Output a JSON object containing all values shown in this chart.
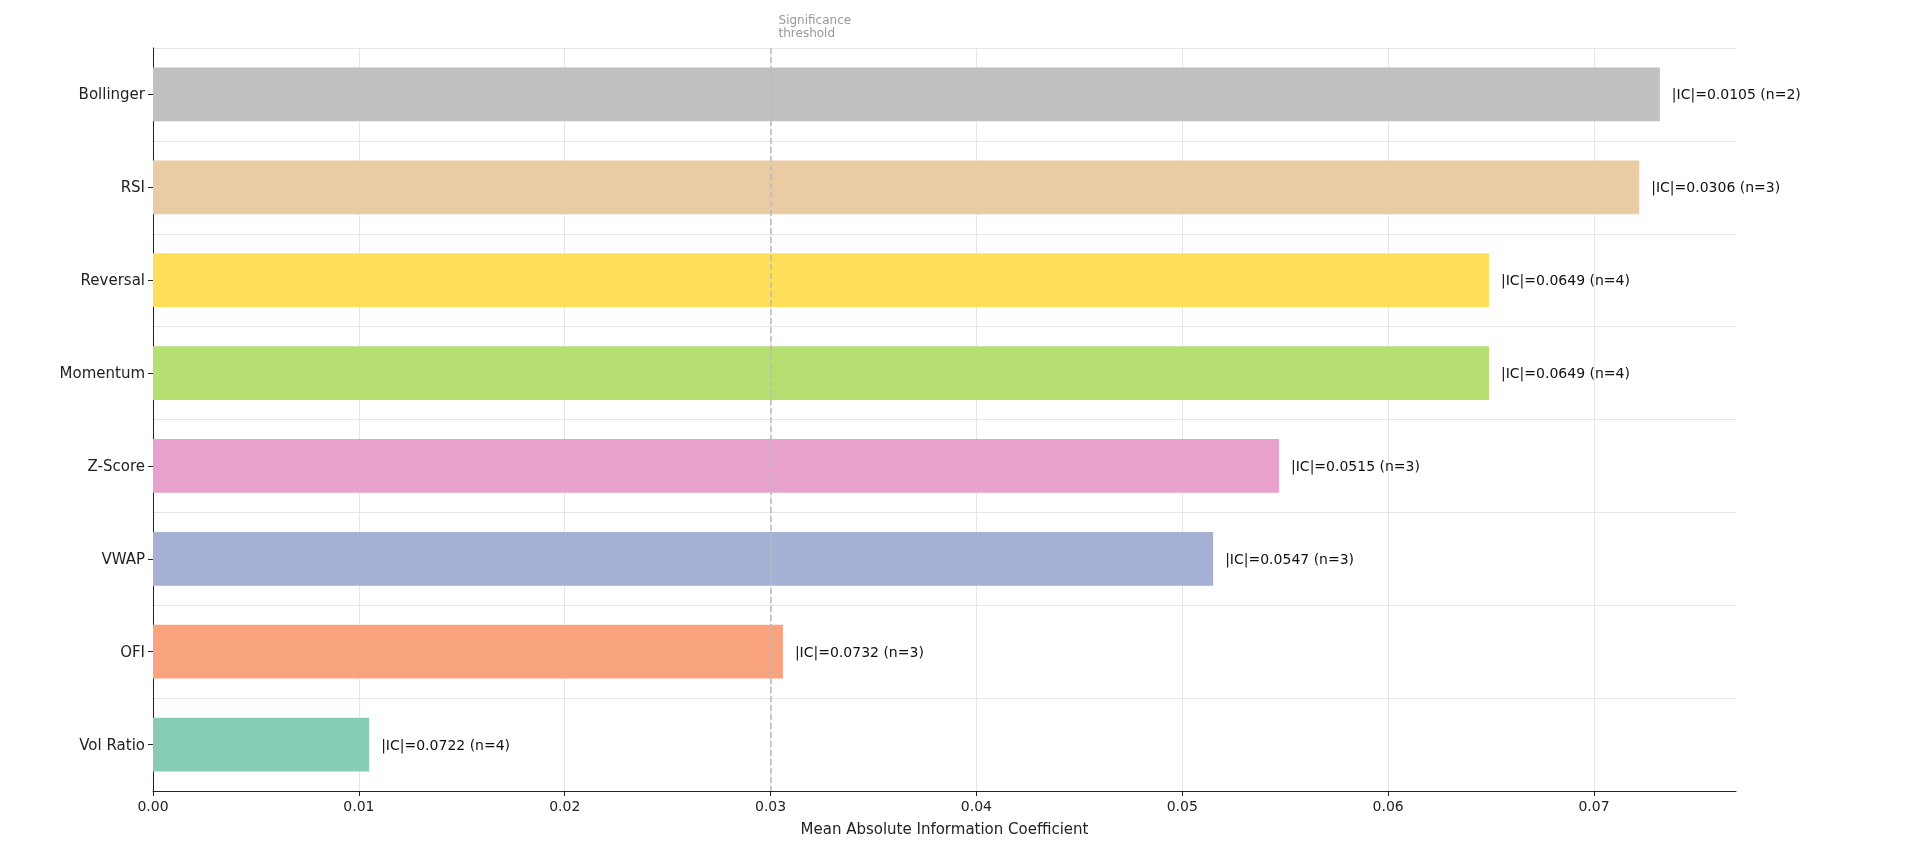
{
  "chart_data": {
    "type": "bar",
    "orientation": "horizontal",
    "xlabel": "Mean Absolute Information Coefficient",
    "categories": [
      "Bollinger",
      "RSI",
      "Reversal",
      "Momentum",
      "Z-Score",
      "VWAP",
      "OFI",
      "Vol Ratio"
    ],
    "values": [
      0.0732,
      0.0722,
      0.0649,
      0.0649,
      0.0547,
      0.0515,
      0.0306,
      0.0105
    ],
    "colors": [
      "#c0c0c0",
      "#e9cca4",
      "#ffdf5a",
      "#b6df72",
      "#e8a0cc",
      "#a4b1d4",
      "#f9a37f",
      "#86cdb3"
    ],
    "xlim": [
      0,
      0.0769
    ],
    "xticks": [
      {
        "value": 0,
        "label": "0.00"
      },
      {
        "value": 0.01,
        "label": "0.01"
      },
      {
        "value": 0.02,
        "label": "0.02"
      },
      {
        "value": 0.03,
        "label": "0.03"
      },
      {
        "value": 0.04,
        "label": "0.04"
      },
      {
        "value": 0.05,
        "label": "0.05"
      },
      {
        "value": 0.06,
        "label": "0.06"
      },
      {
        "value": 0.07,
        "label": "0.07"
      }
    ],
    "grid": true,
    "ref_lines": [
      {
        "axis": "x",
        "value": 0.03,
        "label": "Significance threshold",
        "color": "#bbbbbb",
        "line_style": "dashed"
      }
    ],
    "value_labels": [
      "|IC|=0.0105 (n=2)",
      "|IC|=0.0306 (n=3)",
      "|IC|=0.0649 (n=4)",
      "|IC|=0.0649 (n=4)",
      "|IC|=0.0515 (n=3)",
      "|IC|=0.0547 (n=3)",
      "|IC|=0.0732 (n=3)",
      "|IC|=0.0722 (n=4)"
    ]
  }
}
